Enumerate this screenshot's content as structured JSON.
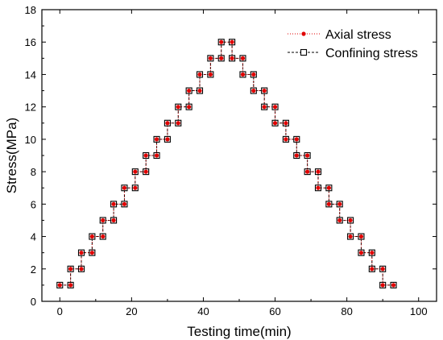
{
  "chart_data": {
    "type": "scatter",
    "xlabel": "Testing time(min)",
    "ylabel": "Stress(MPa)",
    "xlim": [
      -5,
      105
    ],
    "ylim": [
      0,
      18
    ],
    "xticks": [
      0,
      20,
      40,
      60,
      80,
      100
    ],
    "yticks": [
      0,
      2,
      4,
      6,
      8,
      10,
      12,
      14,
      16,
      18
    ],
    "legend_position": "top-right",
    "series": [
      {
        "name": "Axial stress",
        "color": "#e00000",
        "line_style": "dotted",
        "marker": "filled-circle",
        "x": [
          0,
          3,
          3,
          6,
          6,
          9,
          9,
          12,
          12,
          15,
          15,
          18,
          18,
          21,
          21,
          24,
          24,
          27,
          27,
          30,
          30,
          33,
          33,
          36,
          36,
          39,
          39,
          42,
          42,
          45,
          45,
          48,
          48,
          51,
          51,
          54,
          54,
          57,
          57,
          60,
          60,
          63,
          63,
          66,
          66,
          69,
          69,
          72,
          72,
          75,
          75,
          78,
          78,
          81,
          81,
          84,
          84,
          87,
          87,
          90,
          90,
          93
        ],
        "y": [
          1,
          1,
          2,
          2,
          3,
          3,
          4,
          4,
          5,
          5,
          6,
          6,
          7,
          7,
          8,
          8,
          9,
          9,
          10,
          10,
          11,
          11,
          12,
          12,
          13,
          13,
          14,
          14,
          15,
          15,
          16,
          16,
          15,
          15,
          14,
          14,
          13,
          13,
          12,
          12,
          11,
          11,
          10,
          10,
          9,
          9,
          8,
          8,
          7,
          7,
          6,
          6,
          5,
          5,
          4,
          4,
          3,
          3,
          2,
          2,
          1,
          1
        ]
      },
      {
        "name": "Confining stress",
        "color": "#000000",
        "line_style": "dashed",
        "marker": "open-square",
        "x": [
          0,
          3,
          3,
          6,
          6,
          9,
          9,
          12,
          12,
          15,
          15,
          18,
          18,
          21,
          21,
          24,
          24,
          27,
          27,
          30,
          30,
          33,
          33,
          36,
          36,
          39,
          39,
          42,
          42,
          45,
          45,
          48,
          48,
          51,
          51,
          54,
          54,
          57,
          57,
          60,
          60,
          63,
          63,
          66,
          66,
          69,
          69,
          72,
          72,
          75,
          75,
          78,
          78,
          81,
          81,
          84,
          84,
          87,
          87,
          90,
          90,
          93
        ],
        "y": [
          1,
          1,
          2,
          2,
          3,
          3,
          4,
          4,
          5,
          5,
          6,
          6,
          7,
          7,
          8,
          8,
          9,
          9,
          10,
          10,
          11,
          11,
          12,
          12,
          13,
          13,
          14,
          14,
          15,
          15,
          16,
          16,
          15,
          15,
          14,
          14,
          13,
          13,
          12,
          12,
          11,
          11,
          10,
          10,
          9,
          9,
          8,
          8,
          7,
          7,
          6,
          6,
          5,
          5,
          4,
          4,
          3,
          3,
          2,
          2,
          1,
          1
        ]
      }
    ]
  }
}
